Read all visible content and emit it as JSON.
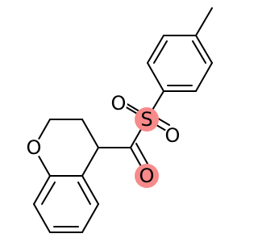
{
  "atoms": [
    "O",
    "S",
    "O",
    "O",
    "O"
  ]
}
